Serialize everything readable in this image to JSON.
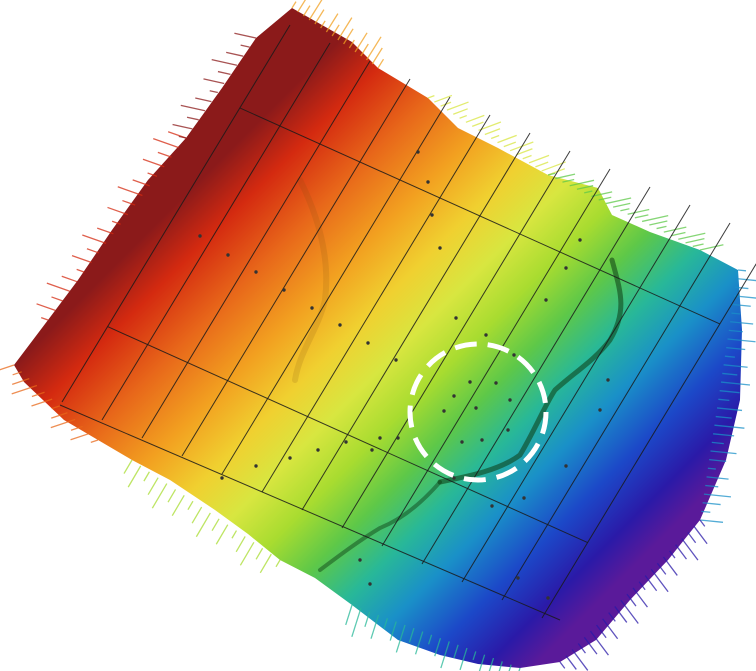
{
  "map": {
    "elevation_colors": [
      "#8b1a1a",
      "#d42a10",
      "#e8681a",
      "#f2a020",
      "#f0d030",
      "#d8e640",
      "#a8dc30",
      "#5ec848",
      "#28b898",
      "#1a90c8",
      "#1c48c8",
      "#2a1aa8",
      "#5a1a9a"
    ],
    "grid_color": "#1a1a1a",
    "marker_color": "#333333",
    "highlight": {
      "stroke": "#ffffff",
      "style": "dashed"
    }
  }
}
